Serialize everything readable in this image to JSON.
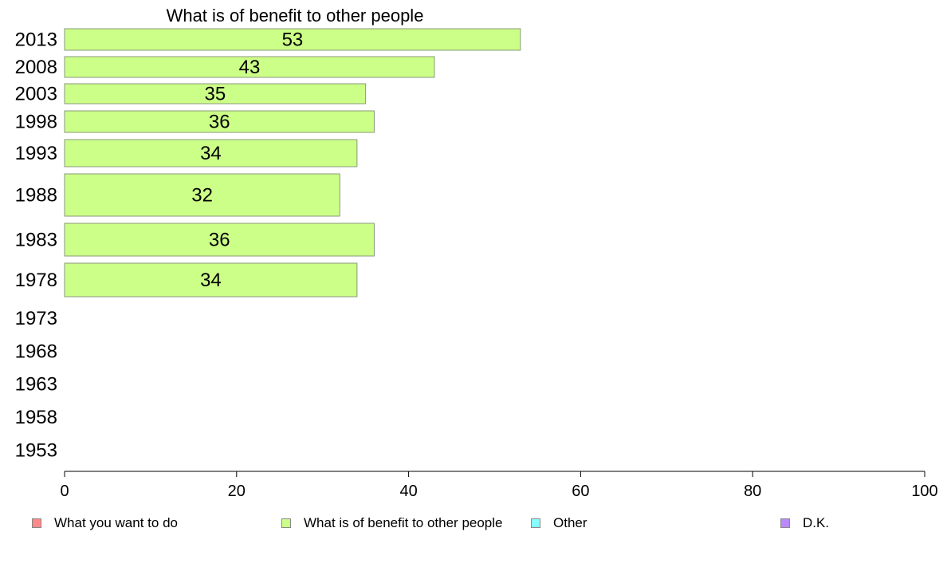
{
  "chart_data": {
    "type": "bar",
    "orientation": "horizontal",
    "title": "What is of benefit to other people",
    "categories": [
      "2013",
      "2008",
      "2003",
      "1998",
      "1993",
      "1988",
      "1983",
      "1978",
      "1973",
      "1968",
      "1963",
      "1958",
      "1953"
    ],
    "series": [
      {
        "name": "What is of benefit to other people",
        "color": "#ccff88",
        "values": [
          53,
          43,
          35,
          36,
          34,
          32,
          36,
          34,
          null,
          null,
          null,
          null,
          null
        ]
      }
    ],
    "xlim": [
      0,
      100
    ],
    "xticks": [
      0,
      20,
      40,
      60,
      80,
      100
    ],
    "grid": false,
    "legend_position": "bottom"
  },
  "legend": [
    {
      "label": "What you want to do",
      "color": "#ff8888"
    },
    {
      "label": "What is of benefit to other people",
      "color": "#ccff88"
    },
    {
      "label": "Other",
      "color": "#88ffff"
    },
    {
      "label": "D.K.",
      "color": "#bb88ff"
    }
  ]
}
